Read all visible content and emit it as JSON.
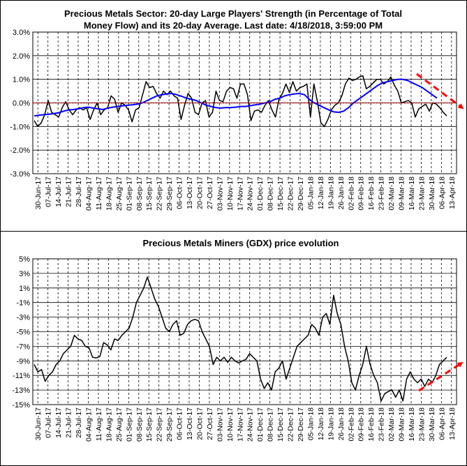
{
  "chart_data": [
    {
      "type": "line",
      "title_line1": "Precious Metals Sector: 20-day Large Players' Strength (in Percentage of Total",
      "title_line2": "Money Flow) and its 20-day Average. Last date: 4/18/2018, 3:59:00 PM",
      "ylim": [
        -3,
        3
      ],
      "y_ticks": [
        "3.0%",
        "2.0%",
        "1.0%",
        "0.0%",
        "-1.0%",
        "-2.0%",
        "-3.0%"
      ],
      "x_ticks": [
        "30-Jun-17",
        "07-Jul-17",
        "14-Jul-17",
        "21-Jul-17",
        "28-Jul-17",
        "04-Aug-17",
        "11-Aug-17",
        "18-Aug-17",
        "25-Aug-17",
        "01-Sep-17",
        "08-Sep-17",
        "15-Sep-17",
        "22-Sep-17",
        "29-Sep-17",
        "06-Oct-17",
        "13-Oct-17",
        "20-Oct-17",
        "27-Oct-17",
        "03-Nov-17",
        "10-Nov-17",
        "17-Nov-17",
        "24-Nov-17",
        "01-Dec-17",
        "08-Dec-17",
        "15-Dec-17",
        "22-Dec-17",
        "29-Dec-17",
        "05-Jan-18",
        "12-Jan-18",
        "19-Jan-18",
        "26-Jan-18",
        "02-Feb-18",
        "09-Feb-18",
        "16-Feb-18",
        "23-Feb-18",
        "02-Mar-18",
        "09-Mar-18",
        "16-Mar-18",
        "23-Mar-18",
        "30-Mar-18",
        "06-Apr-18",
        "13-Apr-18"
      ],
      "series": [
        {
          "color": "#000000",
          "values": [
            -0.75,
            -1.0,
            -0.85,
            -0.5,
            0.1,
            -0.4,
            -0.5,
            -0.6,
            -0.2,
            0.05,
            -0.3,
            -0.5,
            -0.3,
            -0.2,
            -0.3,
            -0.2,
            -0.7,
            -0.3,
            0.0,
            -0.5,
            -0.3,
            -0.2,
            0.3,
            0.15,
            -0.4,
            0.0,
            -0.1,
            -0.3,
            -0.8,
            -0.3,
            -0.2,
            0.35,
            0.9,
            0.65,
            0.7,
            0.4,
            0.2,
            0.5,
            0.35,
            0.5,
            0.3,
            0.2,
            -0.7,
            -0.1,
            0.4,
            0.2,
            -0.4,
            -0.5,
            0.0,
            0.1,
            -0.6,
            -0.4,
            0.5,
            0.1,
            0.05,
            0.5,
            0.65,
            0.6,
            0.2,
            0.8,
            0.8,
            0.35,
            -0.75,
            -0.35,
            -0.3,
            -0.4,
            -0.1,
            0.1,
            -0.3,
            -0.6,
            0.15,
            0.4,
            0.8,
            0.45,
            0.9,
            0.5,
            0.65,
            0.7,
            0.8,
            -0.6,
            0.8,
            0.05,
            -0.85,
            -1.0,
            -0.7,
            -0.3,
            -0.1,
            0.0,
            0.3,
            0.8,
            1.05,
            0.95,
            1.0,
            1.1,
            1.15,
            0.6,
            0.7,
            0.85,
            1.0,
            1.0,
            0.8,
            0.9,
            1.1,
            0.75,
            0.5,
            0.0,
            0.05,
            0.1,
            0.0,
            -0.6,
            -0.25,
            -0.15,
            -0.05,
            -0.35,
            0.0,
            -0.05,
            -0.2,
            -0.4,
            -0.55
          ]
        },
        {
          "color": "#0000ff",
          "values": [
            -0.55,
            -0.52,
            -0.5,
            -0.48,
            -0.45,
            -0.42,
            -0.35,
            -0.3,
            -0.28,
            -0.25,
            -0.2,
            -0.18,
            -0.22,
            -0.25,
            -0.28,
            -0.22,
            -0.18,
            -0.15,
            -0.12,
            -0.1,
            -0.08,
            -0.05,
            0.0,
            0.1,
            0.2,
            0.3,
            0.35,
            0.38,
            0.4,
            0.35,
            0.28,
            0.2,
            0.15,
            0.1,
            0.0,
            -0.1,
            -0.15,
            -0.2,
            -0.22,
            -0.2,
            -0.2,
            -0.18,
            -0.15,
            -0.15,
            -0.12,
            -0.08,
            -0.05,
            0.0,
            0.05,
            0.15,
            0.2,
            0.3,
            0.35,
            0.38,
            0.4,
            0.35,
            0.15,
            0.0,
            -0.1,
            -0.2,
            -0.3,
            -0.38,
            -0.4,
            -0.35,
            -0.2,
            0.0,
            0.15,
            0.3,
            0.45,
            0.6,
            0.75,
            0.85,
            0.9,
            0.95,
            1.0,
            1.0,
            0.95,
            0.85,
            0.75,
            0.65,
            0.5,
            0.35,
            0.2
          ]
        },
        {
          "color": "#cc0000",
          "values": [
            0,
            0
          ]
        }
      ],
      "annotation": "red dashed arrow pointing down over Mar-Apr 2018"
    },
    {
      "type": "line",
      "title": "Precious Metals Miners (GDX) price evolution",
      "ylim": [
        -15,
        5
      ],
      "y_ticks": [
        "5%",
        "3%",
        "1%",
        "-1%",
        "-3%",
        "-5%",
        "-7%",
        "-9%",
        "-11%",
        "-13%",
        "-15%"
      ],
      "x_ticks": [
        "30-Jun-17",
        "07-Jul-17",
        "14-Jul-17",
        "21-Jul-17",
        "28-Jul-17",
        "04-Aug-17",
        "11-Aug-17",
        "18-Aug-17",
        "25-Aug-17",
        "01-Sep-17",
        "08-Sep-17",
        "15-Sep-17",
        "22-Sep-17",
        "29-Sep-17",
        "06-Oct-17",
        "13-Oct-17",
        "20-Oct-17",
        "27-Oct-17",
        "03-Nov-17",
        "10-Nov-17",
        "17-Nov-17",
        "24-Nov-17",
        "01-Dec-17",
        "08-Dec-17",
        "15-Dec-17",
        "22-Dec-17",
        "29-Dec-17",
        "05-Jan-18",
        "12-Jan-18",
        "19-Jan-18",
        "26-Jan-18",
        "02-Feb-18",
        "09-Feb-18",
        "16-Feb-18",
        "23-Feb-18",
        "02-Mar-18",
        "09-Mar-18",
        "16-Mar-18",
        "23-Mar-18",
        "30-Mar-18",
        "06-Apr-18",
        "13-Apr-18"
      ],
      "series": [
        {
          "color": "#000000",
          "values": [
            -9.5,
            -10.5,
            -10.2,
            -11.8,
            -11.0,
            -10.5,
            -9.5,
            -9.0,
            -8.0,
            -7.5,
            -7.0,
            -5.5,
            -6.0,
            -6.2,
            -7.0,
            -7.2,
            -8.5,
            -8.6,
            -8.4,
            -6.5,
            -6.8,
            -7.5,
            -6.0,
            -6.2,
            -5.5,
            -5.0,
            -4.5,
            -3.0,
            -1.0,
            0.0,
            1.0,
            2.5,
            1.0,
            -0.5,
            -1.5,
            -3.0,
            -4.5,
            -5.0,
            -4.0,
            -3.5,
            -5.5,
            -5.2,
            -4.0,
            -3.5,
            -3.3,
            -3.5,
            -5.0,
            -6.0,
            -7.0,
            -9.5,
            -8.5,
            -9.0,
            -8.5,
            -9.2,
            -8.5,
            -9.0,
            -9.3,
            -9.0,
            -8.8,
            -8.0,
            -8.5,
            -9.0,
            -11.5,
            -12.8,
            -12.0,
            -13.0,
            -10.5,
            -10.0,
            -9.0,
            -11.5,
            -10.0,
            -8.5,
            -7.0,
            -6.5,
            -6.0,
            -5.5,
            -4.0,
            -4.5,
            -5.5,
            -3.0,
            -2.5,
            -4.0,
            0.0,
            -2.5,
            -4.0,
            -7.0,
            -9.0,
            -12.0,
            -13.0,
            -11.0,
            -9.5,
            -7.0,
            -9.5,
            -11.0,
            -12.0,
            -14.5,
            -13.5,
            -13.2,
            -13.0,
            -14.0,
            -13.0,
            -14.5,
            -11.5,
            -10.5,
            -11.5,
            -12.0,
            -11.5,
            -12.5,
            -11.5,
            -12.0,
            -11.0,
            -9.5,
            -9.0,
            -8.5
          ]
        }
      ],
      "annotation": "red dashed arrow pointing up over Mar-Apr 2018"
    }
  ],
  "colors": {
    "accent_red": "#ff0000",
    "avg_blue": "#0000ff",
    "zero_line": "#cc0000",
    "grid": "#000000"
  }
}
